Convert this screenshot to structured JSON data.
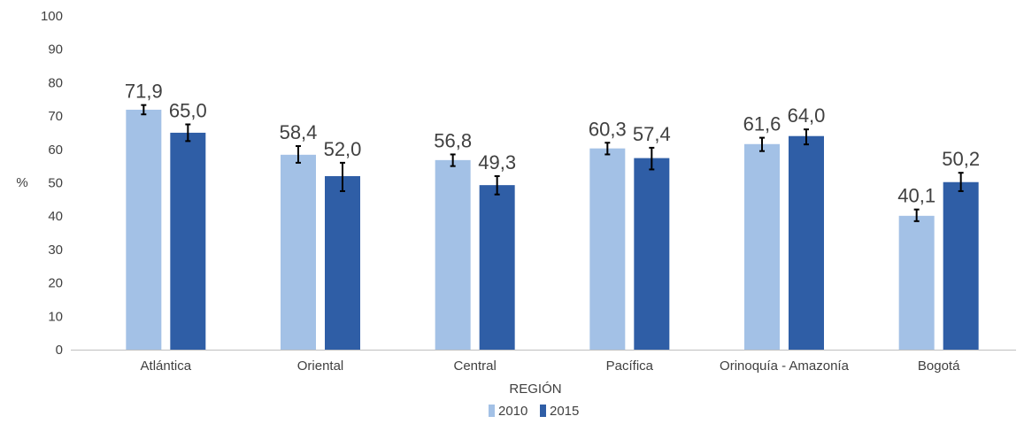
{
  "chart_data": {
    "type": "bar",
    "title": "",
    "xlabel": "REGIÓN",
    "ylabel": "%",
    "ylim": [
      0,
      100
    ],
    "yticks": [
      "0",
      "10",
      "20",
      "30",
      "40",
      "50",
      "60",
      "70",
      "80",
      "90",
      "100"
    ],
    "categories": [
      "Atlántica",
      "Oriental",
      "Central",
      "Pacífica",
      "Orinoquía - Amazonía",
      "Bogotá"
    ],
    "series": [
      {
        "name": "2010",
        "color": "#a3c1e6",
        "values": [
          71.9,
          58.4,
          56.8,
          60.3,
          61.6,
          40.1
        ],
        "labels": [
          "71,9",
          "58,4",
          "56,8",
          "60,3",
          "61,6",
          "40,1"
        ],
        "error_low": [
          70.5,
          56.0,
          55.0,
          58.5,
          59.5,
          38.5
        ],
        "error_high": [
          73.3,
          61.0,
          58.5,
          62.0,
          63.5,
          42.0
        ]
      },
      {
        "name": "2015",
        "color": "#2f5ea6",
        "values": [
          65.0,
          52.0,
          49.3,
          57.4,
          64.0,
          50.2
        ],
        "labels": [
          "65,0",
          "52,0",
          "49,3",
          "57,4",
          "64,0",
          "50,2"
        ],
        "error_low": [
          62.5,
          47.5,
          46.5,
          54.0,
          61.5,
          47.5
        ],
        "error_high": [
          67.5,
          56.0,
          52.0,
          60.5,
          66.0,
          53.0
        ]
      }
    ],
    "grid": false,
    "legend_position": "bottom"
  }
}
